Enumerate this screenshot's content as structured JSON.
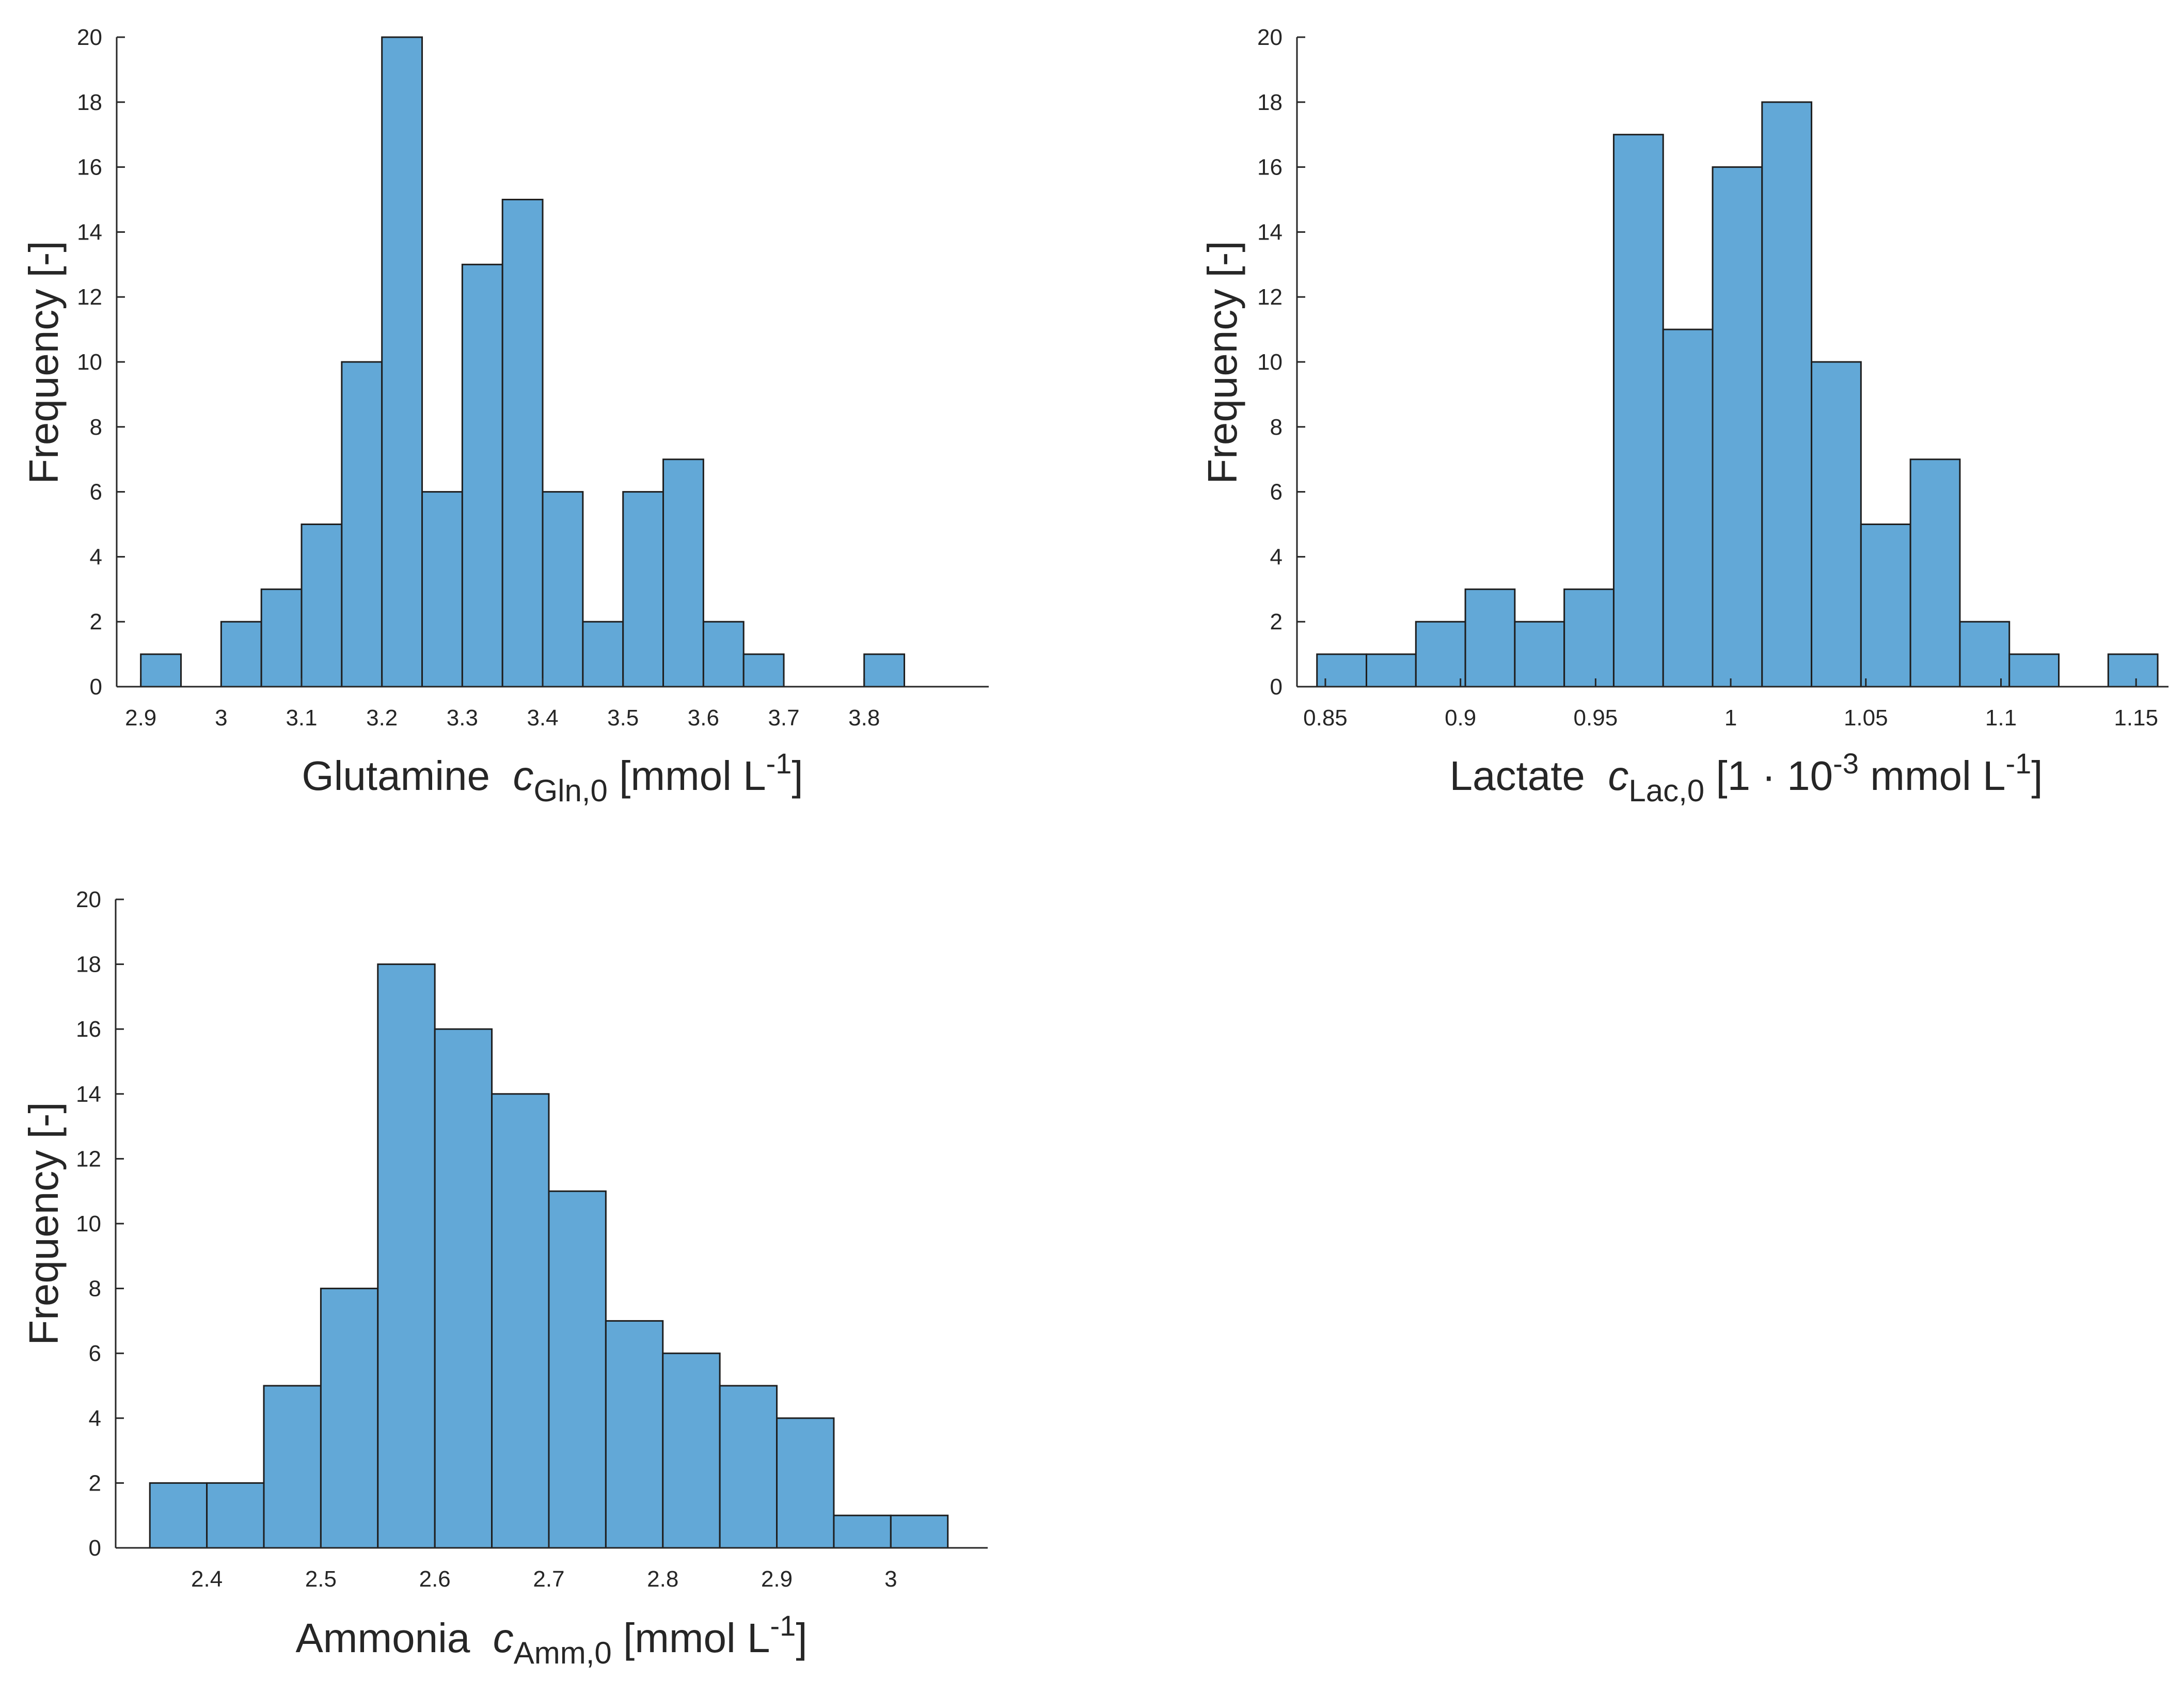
{
  "chart_data": [
    {
      "id": "glutamine",
      "type": "bar",
      "subtype": "histogram",
      "title": "",
      "xlabel": {
        "name": "Glutamine",
        "var": "c",
        "sub": "Gln,0",
        "pre": "[mmol L",
        "sup": "-1",
        "post": "]"
      },
      "ylabel": "Frequency [-]",
      "xlim": [
        2.87,
        3.955
      ],
      "ylim": [
        0,
        20
      ],
      "xticks": [
        2.9,
        3.0,
        3.1,
        3.2,
        3.3,
        3.4,
        3.5,
        3.6,
        3.7,
        3.8
      ],
      "xtick_labels": [
        "2.9",
        "3",
        "3.1",
        "3.2",
        "3.3",
        "3.4",
        "3.5",
        "3.6",
        "3.7",
        "3.8"
      ],
      "yticks": [
        0,
        2,
        4,
        6,
        8,
        10,
        12,
        14,
        16,
        18,
        20
      ],
      "ytick_labels": [
        "0",
        "2",
        "4",
        "6",
        "8",
        "10",
        "12",
        "14",
        "16",
        "18",
        "20"
      ],
      "bin_edges": [
        2.9,
        2.95,
        3.0,
        3.05,
        3.1,
        3.15,
        3.2,
        3.25,
        3.3,
        3.35,
        3.4,
        3.45,
        3.5,
        3.55,
        3.6,
        3.65,
        3.7,
        3.75,
        3.8,
        3.85
      ],
      "values": [
        1,
        0,
        2,
        3,
        5,
        10,
        20,
        6,
        13,
        15,
        6,
        2,
        6,
        7,
        2,
        1,
        0,
        0,
        1
      ]
    },
    {
      "id": "lactate",
      "type": "bar",
      "subtype": "histogram",
      "title": "",
      "xlabel": {
        "name": "Lactate",
        "var": "c",
        "sub": "Lac,0",
        "pre": "[1 · 10",
        "sup": "-3",
        "mid": " mmol L",
        "sup2": "-1",
        "post": "]"
      },
      "ylabel": "Frequency [-]",
      "xlim": [
        0.8395,
        1.162
      ],
      "ylim": [
        0,
        20
      ],
      "xticks": [
        0.85,
        0.9,
        0.95,
        1.0,
        1.05,
        1.1,
        1.15
      ],
      "xtick_labels": [
        "0.85",
        "0.9",
        "0.95",
        "1",
        "1.05",
        "1.1",
        "1.15"
      ],
      "yticks": [
        0,
        2,
        4,
        6,
        8,
        10,
        12,
        14,
        16,
        18,
        20
      ],
      "ytick_labels": [
        "0",
        "2",
        "4",
        "6",
        "8",
        "10",
        "12",
        "14",
        "16",
        "18",
        "20"
      ],
      "bin_edges": [
        0.8469,
        0.8652,
        0.8835,
        0.9018,
        0.9201,
        0.9384,
        0.9567,
        0.975,
        0.9933,
        1.0116,
        1.0299,
        1.0482,
        1.0665,
        1.0848,
        1.1031,
        1.1214,
        1.1397,
        1.158
      ],
      "values": [
        1,
        1,
        2,
        3,
        2,
        3,
        17,
        11,
        16,
        18,
        10,
        5,
        7,
        2,
        1,
        0,
        1
      ]
    },
    {
      "id": "ammonia",
      "type": "bar",
      "subtype": "histogram",
      "title": "",
      "xlabel": {
        "name": "Ammonia",
        "var": "c",
        "sub": "Amm,0",
        "pre": "[mmol L",
        "sup": "-1",
        "post": "]"
      },
      "ylabel": "Frequency [-]",
      "xlim": [
        2.32,
        3.085
      ],
      "ylim": [
        0,
        20
      ],
      "xticks": [
        2.4,
        2.5,
        2.6,
        2.7,
        2.8,
        2.9,
        3.0
      ],
      "xtick_labels": [
        "2.4",
        "2.5",
        "2.6",
        "2.7",
        "2.8",
        "2.9",
        "3"
      ],
      "yticks": [
        0,
        2,
        4,
        6,
        8,
        10,
        12,
        14,
        16,
        18,
        20
      ],
      "ytick_labels": [
        "0",
        "2",
        "4",
        "6",
        "8",
        "10",
        "12",
        "14",
        "16",
        "18",
        "20"
      ],
      "bin_edges": [
        2.35,
        2.4,
        2.45,
        2.5,
        2.55,
        2.6,
        2.65,
        2.7,
        2.75,
        2.8,
        2.85,
        2.9,
        2.95,
        3.0,
        3.05
      ],
      "values": [
        2,
        2,
        5,
        8,
        18,
        16,
        14,
        11,
        7,
        6,
        5,
        4,
        1,
        1
      ]
    }
  ],
  "colors": {
    "bar_fill": "#62a8d7",
    "bar_edge": "#1e1e1e",
    "axis": "#262626"
  }
}
